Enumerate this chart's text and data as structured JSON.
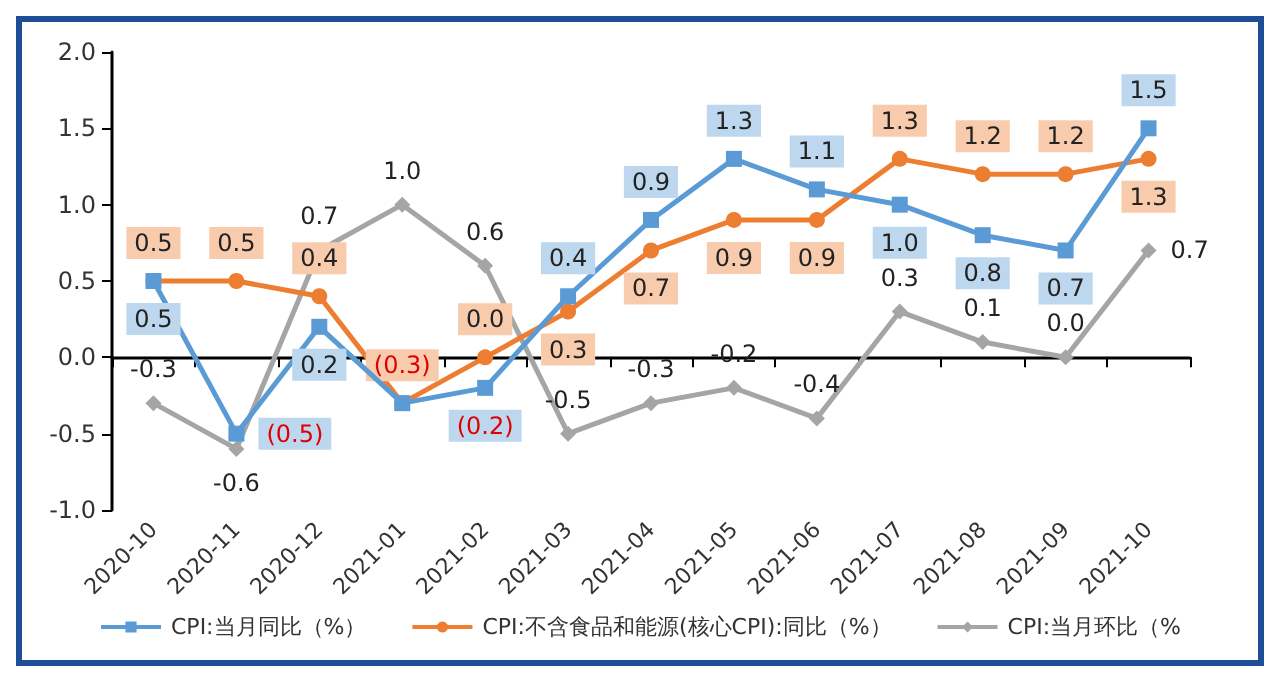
{
  "chart_data": {
    "type": "line",
    "categories": [
      "2020-10",
      "2020-11",
      "2020-12",
      "2021-01",
      "2021-02",
      "2021-03",
      "2021-04",
      "2021-05",
      "2021-06",
      "2021-07",
      "2021-08",
      "2021-09",
      "2021-10"
    ],
    "series": [
      {
        "name": "CPI:当月同比（%）",
        "color": "#5b9bd5",
        "marker": "square",
        "values": [
          0.5,
          -0.5,
          0.2,
          -0.3,
          -0.2,
          0.4,
          0.9,
          1.3,
          1.1,
          1.0,
          0.8,
          0.7,
          1.5
        ],
        "value_labels": [
          "0.5",
          "(0.5)",
          "0.2",
          null,
          "(0.2)",
          "0.4",
          "0.9",
          "1.3",
          "1.1",
          "1.0",
          "0.8",
          "0.7",
          "1.5"
        ]
      },
      {
        "name": "CPI:不含食品和能源(核心CPI):同比（%）",
        "color": "#ed7d31",
        "marker": "circle",
        "values": [
          0.5,
          0.5,
          0.4,
          -0.3,
          0.0,
          0.3,
          0.7,
          0.9,
          0.9,
          1.3,
          1.2,
          1.2,
          1.3
        ],
        "value_labels": [
          "0.5",
          "0.5",
          "0.4",
          "(0.3)",
          "0.0",
          "0.3",
          "0.7",
          "0.9",
          "0.9",
          "1.3",
          "1.2",
          "1.2",
          "1.3"
        ]
      },
      {
        "name": "CPI:当月环比（%",
        "color": "#a5a5a5",
        "marker": "diamond",
        "values": [
          -0.3,
          -0.6,
          0.7,
          1.0,
          0.6,
          -0.5,
          -0.3,
          -0.2,
          -0.4,
          0.3,
          0.1,
          0.0,
          0.7
        ],
        "value_labels": [
          "-0.3",
          "-0.6",
          "0.7",
          "1.0",
          "0.6",
          "-0.5",
          "-0.3",
          "-0.2",
          "-0.4",
          "0.3",
          "0.1",
          "0.0",
          "0.7"
        ]
      }
    ],
    "ylim": [
      -1.0,
      2.0
    ],
    "yticks": [
      {
        "value": -1.0,
        "label": "-1.0"
      },
      -0.5,
      {
        "value": 0,
        "label": "0.0"
      },
      0.5,
      {
        "value": 1,
        "label": "1.0"
      },
      1.5,
      {
        "value": 2,
        "label": "2.0"
      }
    ],
    "legend": "bottom"
  }
}
